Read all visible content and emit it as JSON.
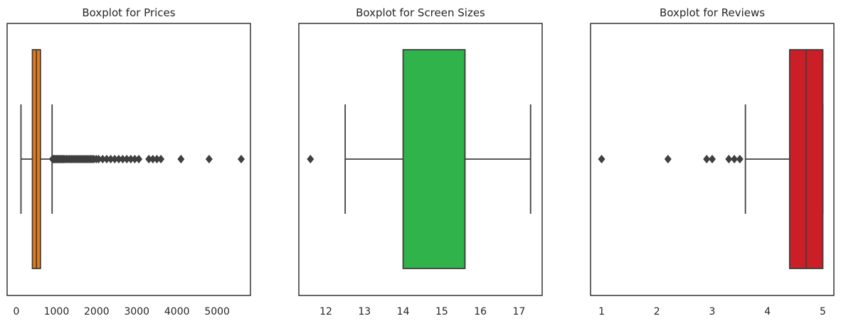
{
  "chart_data": [
    {
      "type": "boxplot",
      "title": "Boxplot for Prices",
      "xlabel": "",
      "ylabel": "",
      "xlim": [
        -230,
        5830
      ],
      "xticks": [
        0,
        1000,
        2000,
        3000,
        4000,
        5000
      ],
      "grid": false,
      "color": "#e57b1b",
      "stats": {
        "whisker_low": 115,
        "q1": 400,
        "median": 500,
        "q3": 600,
        "whisker_high": 890
      },
      "outliers": [
        900,
        925,
        950,
        975,
        1000,
        1030,
        1060,
        1090,
        1120,
        1150,
        1180,
        1210,
        1250,
        1290,
        1330,
        1370,
        1410,
        1450,
        1490,
        1530,
        1570,
        1610,
        1650,
        1690,
        1730,
        1770,
        1810,
        1850,
        1890,
        1930,
        1990,
        2050,
        2150,
        2250,
        2350,
        2450,
        2550,
        2650,
        2750,
        2850,
        2950,
        3050,
        3300,
        3400,
        3500,
        3600,
        4100,
        4800,
        5600
      ]
    },
    {
      "type": "boxplot",
      "title": "Boxplot for Screen Sizes",
      "xlabel": "",
      "ylabel": "",
      "xlim": [
        11.3,
        17.6
      ],
      "xticks": [
        12,
        13,
        14,
        15,
        16,
        17
      ],
      "grid": false,
      "color": "#2fb34a",
      "stats": {
        "whisker_low": 12.5,
        "q1": 14.0,
        "median": 15.6,
        "q3": 15.6,
        "whisker_high": 17.3
      },
      "outliers": [
        11.6
      ]
    },
    {
      "type": "boxplot",
      "title": "Boxplot for Reviews",
      "xlabel": "",
      "ylabel": "",
      "xlim": [
        0.8,
        5.2
      ],
      "xticks": [
        1,
        2,
        3,
        4,
        5
      ],
      "grid": false,
      "color": "#cb1e26",
      "stats": {
        "whisker_low": 3.6,
        "q1": 4.4,
        "median": 4.7,
        "q3": 5.0,
        "whisker_high": 5.0
      },
      "outliers": [
        1.0,
        2.2,
        2.9,
        3.0,
        3.3,
        3.4,
        3.5
      ]
    }
  ]
}
